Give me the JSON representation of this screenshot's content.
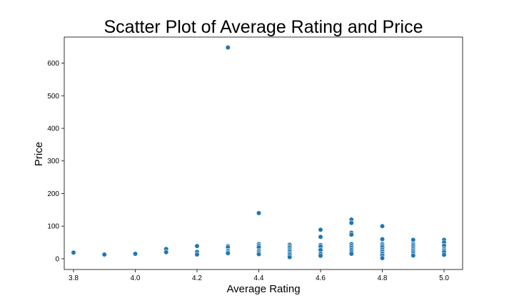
{
  "chart_data": {
    "type": "scatter",
    "title": "Scatter Plot of Average Rating and Price",
    "xlabel": "Average Rating",
    "ylabel": "Price",
    "xlim": [
      3.77,
      5.06
    ],
    "ylim": [
      -33,
      680
    ],
    "xticks": [
      "3.8",
      "4.0",
      "4.2",
      "4.4",
      "4.6",
      "4.8",
      "5.0"
    ],
    "yticks": [
      "0",
      "100",
      "200",
      "300",
      "400",
      "500",
      "600"
    ],
    "grid": false,
    "legend": "none",
    "marker_color": "#1f77b4",
    "points": [
      {
        "x": 3.8,
        "y": 19
      },
      {
        "x": 3.9,
        "y": 13
      },
      {
        "x": 4.0,
        "y": 15
      },
      {
        "x": 4.1,
        "y": 30
      },
      {
        "x": 4.1,
        "y": 20
      },
      {
        "x": 4.2,
        "y": 39
      },
      {
        "x": 4.2,
        "y": 21
      },
      {
        "x": 4.2,
        "y": 13
      },
      {
        "x": 4.3,
        "y": 648
      },
      {
        "x": 4.3,
        "y": 39
      },
      {
        "x": 4.3,
        "y": 35
      },
      {
        "x": 4.3,
        "y": 25
      },
      {
        "x": 4.3,
        "y": 21
      },
      {
        "x": 4.3,
        "y": 17
      },
      {
        "x": 4.4,
        "y": 140
      },
      {
        "x": 4.4,
        "y": 45
      },
      {
        "x": 4.4,
        "y": 40
      },
      {
        "x": 4.4,
        "y": 35
      },
      {
        "x": 4.4,
        "y": 24
      },
      {
        "x": 4.4,
        "y": 19
      },
      {
        "x": 4.4,
        "y": 14
      },
      {
        "x": 4.5,
        "y": 43
      },
      {
        "x": 4.5,
        "y": 38
      },
      {
        "x": 4.5,
        "y": 33
      },
      {
        "x": 4.5,
        "y": 27
      },
      {
        "x": 4.5,
        "y": 22
      },
      {
        "x": 4.5,
        "y": 16
      },
      {
        "x": 4.5,
        "y": 11
      },
      {
        "x": 4.5,
        "y": 5
      },
      {
        "x": 4.6,
        "y": 89
      },
      {
        "x": 4.6,
        "y": 67
      },
      {
        "x": 4.6,
        "y": 42
      },
      {
        "x": 4.6,
        "y": 37
      },
      {
        "x": 4.6,
        "y": 27
      },
      {
        "x": 4.6,
        "y": 15
      },
      {
        "x": 4.6,
        "y": 9
      },
      {
        "x": 4.7,
        "y": 120
      },
      {
        "x": 4.7,
        "y": 110
      },
      {
        "x": 4.7,
        "y": 80
      },
      {
        "x": 4.7,
        "y": 74
      },
      {
        "x": 4.7,
        "y": 45
      },
      {
        "x": 4.7,
        "y": 39
      },
      {
        "x": 4.7,
        "y": 33
      },
      {
        "x": 4.7,
        "y": 27
      },
      {
        "x": 4.7,
        "y": 21
      },
      {
        "x": 4.7,
        "y": 15
      },
      {
        "x": 4.8,
        "y": 100
      },
      {
        "x": 4.8,
        "y": 60
      },
      {
        "x": 4.8,
        "y": 45
      },
      {
        "x": 4.8,
        "y": 40
      },
      {
        "x": 4.8,
        "y": 35
      },
      {
        "x": 4.8,
        "y": 28
      },
      {
        "x": 4.8,
        "y": 22
      },
      {
        "x": 4.8,
        "y": 16
      },
      {
        "x": 4.8,
        "y": 10
      },
      {
        "x": 4.8,
        "y": 2
      },
      {
        "x": 4.9,
        "y": 58
      },
      {
        "x": 4.9,
        "y": 45
      },
      {
        "x": 4.9,
        "y": 40
      },
      {
        "x": 4.9,
        "y": 35
      },
      {
        "x": 4.9,
        "y": 30
      },
      {
        "x": 4.9,
        "y": 25
      },
      {
        "x": 4.9,
        "y": 20
      },
      {
        "x": 4.9,
        "y": 15
      },
      {
        "x": 4.9,
        "y": 10
      },
      {
        "x": 5.0,
        "y": 58
      },
      {
        "x": 5.0,
        "y": 50
      },
      {
        "x": 5.0,
        "y": 40
      },
      {
        "x": 5.0,
        "y": 30
      },
      {
        "x": 5.0,
        "y": 25
      },
      {
        "x": 5.0,
        "y": 20
      },
      {
        "x": 5.0,
        "y": 12
      }
    ]
  }
}
